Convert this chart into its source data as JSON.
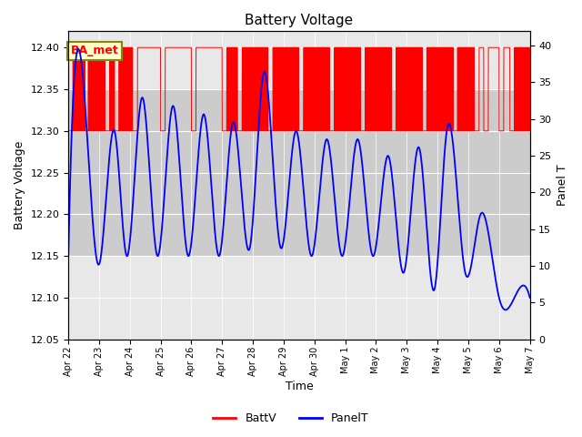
{
  "title": "Battery Voltage",
  "xlabel": "Time",
  "ylabel_left": "Battery Voltage",
  "ylabel_right": "Panel T",
  "ylim_left": [
    12.05,
    12.42
  ],
  "ylim_right": [
    0,
    42
  ],
  "yticks_left": [
    12.05,
    12.1,
    12.15,
    12.2,
    12.25,
    12.3,
    12.35,
    12.4
  ],
  "yticks_right": [
    0,
    5,
    10,
    15,
    20,
    25,
    30,
    35,
    40
  ],
  "background_color": "#ffffff",
  "plot_bg_color": "#e8e8e8",
  "band_color": "#cccccc",
  "annotation_text": "BA_met",
  "annotation_bg": "#ffffcc",
  "annotation_border": "#888800",
  "red_color": "#ff0000",
  "blue_color": "#0000ff",
  "legend_labels": [
    "BattV",
    "PanelT"
  ],
  "xtick_labels": [
    "Apr 22",
    "Apr 23",
    "Apr 24",
    "Apr 25",
    "Apr 26",
    "Apr 27",
    "Apr 28",
    "Apr 29",
    "Apr 30",
    "May 1",
    "May 2",
    "May 3",
    "May 4",
    "May 5",
    "May 6",
    "May 7"
  ]
}
